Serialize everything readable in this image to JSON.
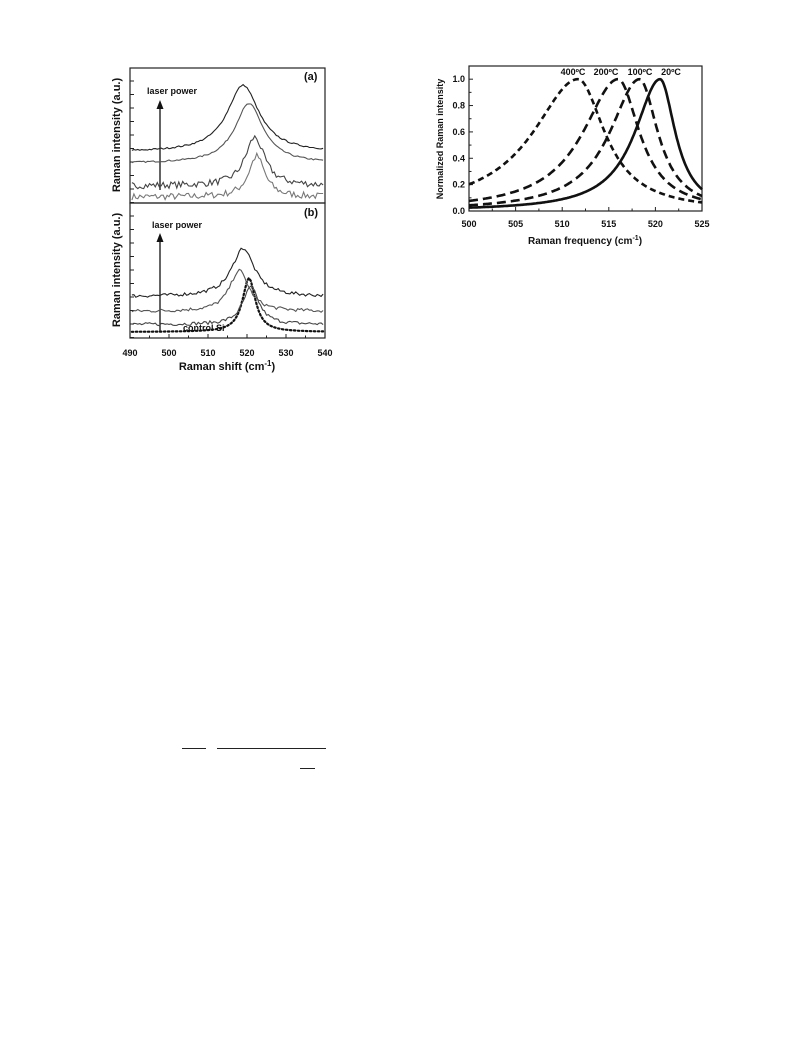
{
  "left_figure": {
    "panel_a_label": "(a)",
    "panel_b_label": "(b)",
    "ylabel_a": "Raman intensity (a.u.)",
    "ylabel_b": "Raman intensity (a.u.)",
    "arrow_label_a": "laser power",
    "arrow_label_b": "laser power",
    "control_label": "control Si",
    "xlabel": "Raman shift (cm",
    "xlabel_sup": "-1",
    "xlabel_end": ")",
    "xticks": [
      "490",
      "500",
      "510",
      "520",
      "530",
      "540"
    ]
  },
  "right_figure": {
    "ylabel": "Normalized Raman intensity",
    "xlabel": "Raman frequency (cm",
    "xlabel_sup": "-1",
    "xlabel_end": ")",
    "xticks": [
      "500",
      "505",
      "510",
      "515",
      "520",
      "525"
    ],
    "yticks": [
      "0.0",
      "0.2",
      "0.4",
      "0.6",
      "0.8",
      "1.0"
    ],
    "curve_labels": [
      "400ºC",
      "200ºC",
      "100ºC",
      "20ºC"
    ]
  },
  "chart_data": [
    {
      "type": "line",
      "panel": "(a)",
      "xlabel": "Raman shift (cm-1)",
      "ylabel": "Raman intensity (a.u.)",
      "xlim": [
        490,
        540
      ],
      "annotation": "laser power",
      "series": [
        {
          "peak_center": 522.5,
          "fwhm": 5,
          "offset": 0.0,
          "amplitude": 1.1,
          "noise": "high"
        },
        {
          "peak_center": 522.0,
          "fwhm": 6,
          "offset": 0.3,
          "amplitude": 1.3,
          "noise": "high"
        },
        {
          "peak_center": 520.5,
          "fwhm": 9,
          "offset": 0.9,
          "amplitude": 1.6,
          "noise": "low"
        },
        {
          "peak_center": 519.0,
          "fwhm": 10,
          "offset": 1.2,
          "amplitude": 1.8,
          "noise": "low"
        }
      ]
    },
    {
      "type": "line",
      "panel": "(b)",
      "xlabel": "Raman shift (cm-1)",
      "ylabel": "Raman intensity (a.u.)",
      "xlim": [
        490,
        540
      ],
      "annotation": "laser power",
      "series": [
        {
          "name": "control Si",
          "style": "dotted",
          "peak_center": 520.5,
          "fwhm": 4,
          "offset": 0.0,
          "amplitude": 1.45
        },
        {
          "peak_center": 521.0,
          "fwhm": 5,
          "offset": 0.2,
          "amplitude": 1.0,
          "noise": "medium"
        },
        {
          "peak_center": 518.0,
          "fwhm": 6,
          "offset": 0.55,
          "amplitude": 1.1,
          "noise": "medium"
        },
        {
          "peak_center": 519.0,
          "fwhm": 7,
          "offset": 0.95,
          "amplitude": 1.3,
          "noise": "medium"
        }
      ]
    },
    {
      "type": "line",
      "xlabel": "Raman frequency (cm-1)",
      "ylabel": "Normalized Raman intensity",
      "xlim": [
        500,
        525
      ],
      "ylim": [
        0.0,
        1.1
      ],
      "series": [
        {
          "name": "400ºC",
          "style": "short-dash",
          "peak_center": 511.7,
          "hwhm_left": 5.9,
          "hwhm_right": 3.5
        },
        {
          "name": "200ºC",
          "style": "long-dash",
          "peak_center": 516.0,
          "hwhm_left": 4.6,
          "hwhm_right": 2.8
        },
        {
          "name": "100ºC",
          "style": "long-dash",
          "peak_center": 518.3,
          "hwhm_left": 3.9,
          "hwhm_right": 2.4
        },
        {
          "name": "20ºC",
          "style": "solid",
          "peak_center": 520.5,
          "hwhm_left": 3.3,
          "hwhm_right": 2.0
        }
      ]
    }
  ]
}
